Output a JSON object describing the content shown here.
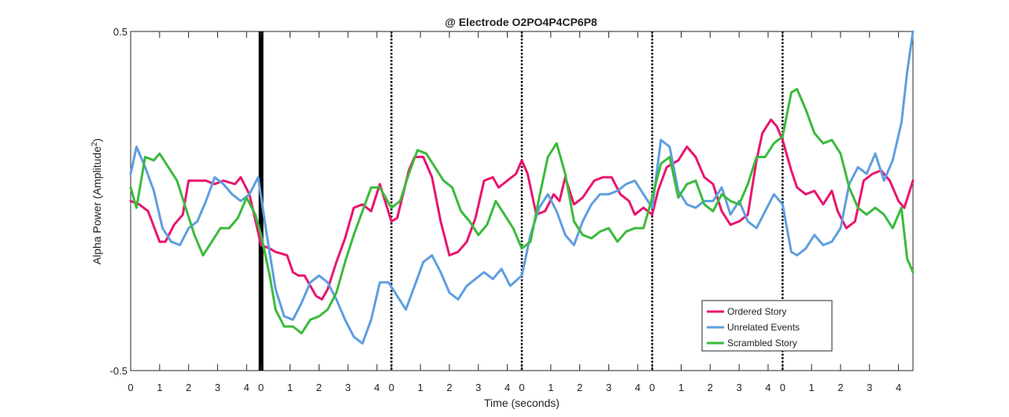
{
  "chart_data": {
    "type": "line",
    "title": "@ Electrode O2PO4P4CP6P8",
    "xlabel": "Time (seconds)",
    "ylabel_base": "Alpha Power (Amplitude",
    "ylabel_sup": "2",
    "ylabel_close": ")",
    "ylim": [
      -0.5,
      0.5
    ],
    "xlim": [
      0,
      27
    ],
    "y_ticks": [
      {
        "value": 0.5,
        "label": "0.5"
      },
      {
        "value": -0.5,
        "label": "-0.5"
      }
    ],
    "x_ticks": [
      {
        "value": 0,
        "label": "0"
      },
      {
        "value": 1,
        "label": "1"
      },
      {
        "value": 2,
        "label": "2"
      },
      {
        "value": 3,
        "label": "3"
      },
      {
        "value": 4,
        "label": "4"
      },
      {
        "value": 4.5,
        "label": "0"
      },
      {
        "value": 5.5,
        "label": "1"
      },
      {
        "value": 6.5,
        "label": "2"
      },
      {
        "value": 7.5,
        "label": "3"
      },
      {
        "value": 8.5,
        "label": "4"
      },
      {
        "value": 9,
        "label": "0"
      },
      {
        "value": 10,
        "label": "1"
      },
      {
        "value": 11,
        "label": "2"
      },
      {
        "value": 12,
        "label": "3"
      },
      {
        "value": 13,
        "label": "4"
      },
      {
        "value": 13.5,
        "label": "0"
      },
      {
        "value": 14.5,
        "label": "1"
      },
      {
        "value": 15.5,
        "label": "2"
      },
      {
        "value": 16.5,
        "label": "3"
      },
      {
        "value": 17.5,
        "label": "4"
      },
      {
        "value": 18,
        "label": "0"
      },
      {
        "value": 19,
        "label": "1"
      },
      {
        "value": 20,
        "label": "2"
      },
      {
        "value": 21,
        "label": "3"
      },
      {
        "value": 22,
        "label": "4"
      },
      {
        "value": 22.5,
        "label": "0"
      },
      {
        "value": 23.5,
        "label": "1"
      },
      {
        "value": 24.5,
        "label": "2"
      },
      {
        "value": 25.5,
        "label": "3"
      },
      {
        "value": 26.5,
        "label": "4"
      }
    ],
    "event_markers": [
      {
        "x": 4.5,
        "style": "solid"
      },
      {
        "x": 9,
        "style": "dotted"
      },
      {
        "x": 13.5,
        "style": "dotted"
      },
      {
        "x": 18,
        "style": "dotted"
      },
      {
        "x": 22.5,
        "style": "dotted"
      }
    ],
    "grid": false,
    "legend_position": "bottom-right",
    "series": [
      {
        "name": "Ordered Story",
        "color": "#e8156e",
        "x": [
          0,
          0.3,
          0.6,
          1.0,
          1.2,
          1.5,
          1.8,
          2.0,
          2.3,
          2.6,
          2.9,
          3.2,
          3.6,
          3.8,
          4.1,
          4.5,
          4.8,
          5.0,
          5.4,
          5.6,
          5.8,
          6.0,
          6.4,
          6.6,
          6.8,
          7.1,
          7.4,
          7.7,
          8.0,
          8.3,
          8.6,
          9.0,
          9.2,
          9.6,
          9.8,
          10.1,
          10.4,
          10.7,
          11.0,
          11.3,
          11.6,
          11.9,
          12.2,
          12.5,
          12.7,
          13.0,
          13.3,
          13.5,
          13.7,
          14.0,
          14.3,
          14.6,
          14.8,
          15.0,
          15.3,
          15.6,
          16.0,
          16.3,
          16.6,
          16.9,
          17.2,
          17.4,
          17.7,
          18.0,
          18.2,
          18.5,
          18.9,
          19.2,
          19.5,
          19.8,
          20.1,
          20.4,
          20.7,
          21.0,
          21.3,
          21.6,
          21.8,
          22.1,
          22.3,
          22.5,
          22.8,
          23.0,
          23.3,
          23.6,
          23.9,
          24.2,
          24.4,
          24.7,
          25.0,
          25.3,
          25.6,
          25.9,
          26.2,
          26.5,
          26.7,
          27.0
        ],
        "values": [
          0.0,
          -0.01,
          -0.03,
          -0.12,
          -0.12,
          -0.07,
          -0.04,
          0.06,
          0.06,
          0.06,
          0.05,
          0.06,
          0.05,
          0.07,
          0.02,
          -0.13,
          -0.14,
          -0.15,
          -0.16,
          -0.21,
          -0.22,
          -0.22,
          -0.28,
          -0.29,
          -0.26,
          -0.18,
          -0.11,
          -0.02,
          -0.01,
          -0.03,
          0.05,
          -0.06,
          -0.05,
          0.09,
          0.13,
          0.13,
          0.07,
          -0.06,
          -0.16,
          -0.15,
          -0.12,
          -0.05,
          0.06,
          0.07,
          0.04,
          0.06,
          0.08,
          0.12,
          0.08,
          -0.04,
          -0.03,
          0.02,
          0.0,
          0.07,
          -0.01,
          0.01,
          0.06,
          0.07,
          0.07,
          0.02,
          0.0,
          -0.04,
          -0.02,
          -0.04,
          0.03,
          0.1,
          0.12,
          0.16,
          0.13,
          0.07,
          0.05,
          -0.03,
          -0.07,
          -0.06,
          -0.04,
          0.12,
          0.2,
          0.24,
          0.22,
          0.18,
          0.09,
          0.04,
          0.02,
          0.03,
          -0.01,
          0.03,
          -0.03,
          -0.08,
          -0.06,
          0.06,
          0.08,
          0.09,
          0.06,
          0.0,
          -0.02,
          0.06
        ]
      },
      {
        "name": "Unrelated Events",
        "color": "#5f9ee0",
        "x": [
          0,
          0.2,
          0.5,
          0.8,
          1.1,
          1.4,
          1.7,
          2.0,
          2.3,
          2.6,
          2.9,
          3.2,
          3.5,
          3.8,
          4.1,
          4.4,
          4.7,
          5.0,
          5.3,
          5.6,
          5.9,
          6.2,
          6.5,
          6.8,
          7.1,
          7.4,
          7.7,
          8.0,
          8.3,
          8.6,
          8.9,
          9.2,
          9.5,
          9.8,
          10.1,
          10.4,
          10.7,
          11.0,
          11.3,
          11.6,
          11.9,
          12.2,
          12.5,
          12.8,
          13.1,
          13.5,
          13.8,
          14.1,
          14.4,
          14.7,
          15.0,
          15.3,
          15.6,
          15.9,
          16.2,
          16.5,
          16.8,
          17.1,
          17.4,
          17.7,
          18.0,
          18.3,
          18.6,
          18.9,
          19.2,
          19.5,
          19.8,
          20.1,
          20.4,
          20.7,
          21.0,
          21.3,
          21.6,
          21.9,
          22.2,
          22.5,
          22.8,
          23.0,
          23.3,
          23.6,
          23.9,
          24.2,
          24.5,
          24.8,
          25.1,
          25.4,
          25.7,
          26.0,
          26.3,
          26.6,
          26.8,
          27.0
        ],
        "values": [
          0.08,
          0.16,
          0.1,
          0.03,
          -0.08,
          -0.12,
          -0.13,
          -0.08,
          -0.06,
          0.0,
          0.07,
          0.05,
          0.02,
          0.0,
          0.02,
          0.07,
          -0.1,
          -0.26,
          -0.34,
          -0.35,
          -0.3,
          -0.24,
          -0.22,
          -0.24,
          -0.29,
          -0.35,
          -0.4,
          -0.42,
          -0.35,
          -0.24,
          -0.24,
          -0.28,
          -0.32,
          -0.25,
          -0.18,
          -0.16,
          -0.21,
          -0.27,
          -0.29,
          -0.25,
          -0.23,
          -0.21,
          -0.23,
          -0.2,
          -0.25,
          -0.22,
          -0.1,
          -0.02,
          0.02,
          -0.03,
          -0.1,
          -0.13,
          -0.06,
          -0.01,
          0.02,
          0.02,
          0.03,
          0.05,
          0.06,
          0.02,
          -0.02,
          0.18,
          0.16,
          0.03,
          -0.01,
          -0.02,
          0.0,
          0.0,
          0.04,
          -0.04,
          0.0,
          -0.06,
          -0.08,
          -0.03,
          0.02,
          -0.01,
          -0.15,
          -0.16,
          -0.14,
          -0.1,
          -0.13,
          -0.12,
          -0.08,
          0.05,
          0.1,
          0.08,
          0.14,
          0.06,
          0.12,
          0.23,
          0.38,
          0.5
        ]
      },
      {
        "name": "Scrambled Story",
        "color": "#3cba3c",
        "x": [
          0,
          0.2,
          0.5,
          0.8,
          1.0,
          1.3,
          1.6,
          1.9,
          2.2,
          2.5,
          2.8,
          3.1,
          3.4,
          3.7,
          4.0,
          4.3,
          4.5,
          4.8,
          5.0,
          5.3,
          5.6,
          5.9,
          6.2,
          6.5,
          6.8,
          7.1,
          7.4,
          7.7,
          8.0,
          8.3,
          8.6,
          9.0,
          9.3,
          9.6,
          9.9,
          10.2,
          10.5,
          10.8,
          11.1,
          11.4,
          11.7,
          12.0,
          12.3,
          12.6,
          12.9,
          13.2,
          13.5,
          13.8,
          14.1,
          14.4,
          14.7,
          15.0,
          15.3,
          15.6,
          15.9,
          16.2,
          16.5,
          16.8,
          17.1,
          17.4,
          17.7,
          18.0,
          18.3,
          18.6,
          18.9,
          19.2,
          19.5,
          19.8,
          20.1,
          20.4,
          20.7,
          21.0,
          21.3,
          21.6,
          21.9,
          22.2,
          22.5,
          22.8,
          23.0,
          23.3,
          23.6,
          23.9,
          24.2,
          24.5,
          24.8,
          25.1,
          25.4,
          25.7,
          26.0,
          26.3,
          26.6,
          26.8,
          27.0
        ],
        "values": [
          0.04,
          -0.02,
          0.13,
          0.12,
          0.14,
          0.1,
          0.06,
          -0.02,
          -0.1,
          -0.16,
          -0.12,
          -0.08,
          -0.08,
          -0.05,
          0.01,
          -0.04,
          -0.1,
          -0.22,
          -0.32,
          -0.37,
          -0.37,
          -0.39,
          -0.35,
          -0.34,
          -0.32,
          -0.27,
          -0.18,
          -0.1,
          -0.03,
          0.04,
          0.04,
          -0.02,
          0.0,
          0.08,
          0.15,
          0.14,
          0.1,
          0.06,
          0.04,
          -0.03,
          -0.06,
          -0.1,
          -0.07,
          0.0,
          -0.04,
          -0.08,
          -0.14,
          -0.12,
          0.01,
          0.13,
          0.17,
          0.08,
          -0.06,
          -0.1,
          -0.11,
          -0.09,
          -0.08,
          -0.12,
          -0.09,
          -0.08,
          -0.08,
          0.01,
          0.11,
          0.13,
          0.01,
          0.05,
          0.06,
          -0.01,
          -0.03,
          0.02,
          0.0,
          -0.01,
          0.05,
          0.13,
          0.13,
          0.17,
          0.19,
          0.32,
          0.33,
          0.27,
          0.2,
          0.17,
          0.18,
          0.14,
          0.04,
          -0.02,
          -0.04,
          -0.02,
          -0.04,
          -0.08,
          -0.02,
          -0.17,
          -0.21
        ]
      }
    ]
  }
}
